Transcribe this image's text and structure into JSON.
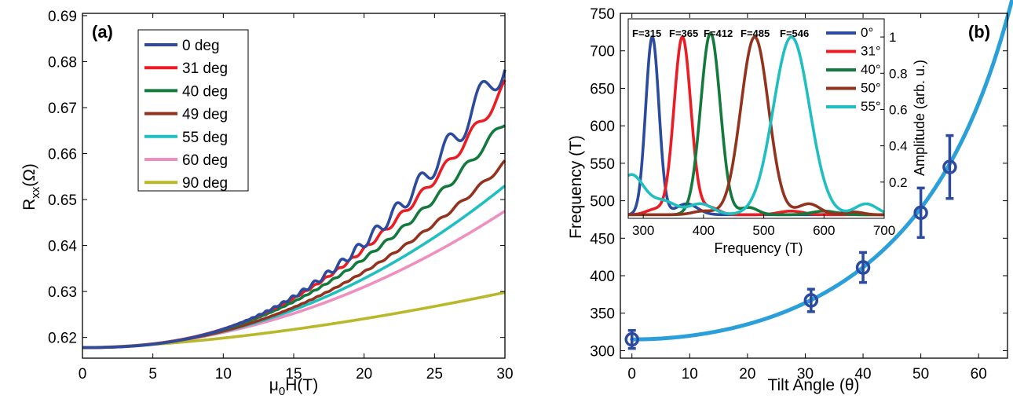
{
  "colors": {
    "c0": "#2c4a9e",
    "c31": "#ec1c24",
    "c40": "#137a3e",
    "c49": "#93331e",
    "c55": "#1fbfc1",
    "c60": "#ee8fbf",
    "c90": "#b9b82a",
    "fit": "#2b9fd9",
    "points": "#2b4aa0"
  },
  "chart_data": [
    {
      "type": "line",
      "panel_label": "(a)",
      "xlabel": "μ0H(T)",
      "ylabel": "Rxx(Ω)",
      "xlim": [
        0,
        30
      ],
      "ylim": [
        0.6155,
        0.6905
      ],
      "x_ticks": [
        "0",
        "5",
        "10",
        "15",
        "20",
        "25",
        "30"
      ],
      "y_ticks": [
        "0.62",
        "0.63",
        "0.64",
        "0.65",
        "0.66",
        "0.67",
        "0.68",
        "0.69"
      ],
      "legend_position": "top-left",
      "series": [
        {
          "name": "0 deg",
          "r0": 0.6178,
          "end": 0.6805,
          "p": 2.5,
          "amp": 0.004,
          "F": 315
        },
        {
          "name": "31 deg",
          "r0": 0.6178,
          "end": 0.6745,
          "p": 2.4,
          "amp": 0.0015,
          "F": 365
        },
        {
          "name": "40 deg",
          "r0": 0.6178,
          "end": 0.667,
          "p": 2.3,
          "amp": 0.001,
          "F": 412
        },
        {
          "name": "49 deg",
          "r0": 0.6178,
          "end": 0.658,
          "p": 2.2,
          "amp": 0.0005,
          "F": 485
        },
        {
          "name": "55 deg",
          "r0": 0.6178,
          "end": 0.653,
          "p": 2.1,
          "amp": 0.0,
          "F": 546
        },
        {
          "name": "60 deg",
          "r0": 0.6178,
          "end": 0.6475,
          "p": 2.0,
          "amp": 0.0,
          "F": 600
        },
        {
          "name": "90 deg",
          "r0": 0.6178,
          "end": 0.6298,
          "p": 1.6,
          "amp": 0.0,
          "F": 0
        }
      ]
    },
    {
      "type": "scatter",
      "panel_label": "(b)",
      "xlabel": "Tilt Angle (θ)",
      "ylabel": "Frequency (T)",
      "xlim": [
        -2,
        65
      ],
      "ylim": [
        290,
        750
      ],
      "x_ticks": [
        "0",
        "10",
        "20",
        "30",
        "40",
        "50",
        "60"
      ],
      "y_ticks": [
        "300",
        "350",
        "400",
        "450",
        "500",
        "550",
        "600",
        "650",
        "700",
        "750"
      ],
      "points": [
        {
          "x": 0,
          "y": 315,
          "err": 12
        },
        {
          "x": 31,
          "y": 367,
          "err": 15
        },
        {
          "x": 40,
          "y": 411,
          "err": 20
        },
        {
          "x": 50,
          "y": 484,
          "err": 33
        },
        {
          "x": 55,
          "y": 545,
          "err": 42
        }
      ],
      "fit": {
        "F0": 315,
        "form": "F0/cos(theta)"
      }
    },
    {
      "type": "line",
      "inset": true,
      "xlabel": "Frequency (T)",
      "ylabel": "Amplitude (arb. u.)",
      "xlim": [
        275,
        700
      ],
      "ylim": [
        0,
        1.1
      ],
      "x_ticks": [
        "300",
        "400",
        "500",
        "600",
        "700"
      ],
      "y_ticks": [
        "0.2",
        "0.4",
        "0.6",
        "0.8",
        "1"
      ],
      "peak_labels": [
        "F=315",
        "F=365",
        "F=412",
        "F=485",
        "F=546"
      ],
      "legend_position": "top-right",
      "series": [
        {
          "name": "0°",
          "center": 315,
          "width": 11
        },
        {
          "name": "31°",
          "center": 365,
          "width": 14
        },
        {
          "name": "40°",
          "center": 412,
          "width": 16
        },
        {
          "name": "50°",
          "center": 485,
          "width": 23
        },
        {
          "name": "55°",
          "center": 546,
          "width": 30
        }
      ]
    }
  ]
}
